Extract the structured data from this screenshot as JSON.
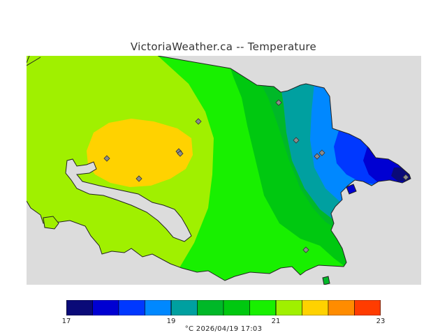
{
  "title": "VictoriaWeather.ca -- Temperature",
  "footer": "°C  2026/04/19 17:03",
  "colors": {
    "land_gray": "#dcdcdc",
    "coast": "#222222",
    "band_17": "#0a0a78",
    "band_17_5": "#0000d2",
    "band_18": "#0038ff",
    "band_18_5": "#0088ff",
    "band_19": "#00a0a0",
    "band_19_5": "#00b828",
    "band_20": "#00c810",
    "band_20_5": "#18f000",
    "band_21": "#a0f000",
    "band_21_5": "#ffd200",
    "band_22": "#ff8c00",
    "band_22_5": "#ff3c00",
    "band_23": "#ff0000"
  },
  "legend": {
    "unit": "°C",
    "min": 17,
    "max": 23,
    "tick_labels": [
      "17",
      "19",
      "21",
      "23"
    ],
    "bands": [
      {
        "from": 17.0,
        "to": 17.5,
        "color": "#0a0a78"
      },
      {
        "from": 17.5,
        "to": 18.0,
        "color": "#0000d2"
      },
      {
        "from": 18.0,
        "to": 18.5,
        "color": "#0038ff"
      },
      {
        "from": 18.5,
        "to": 19.0,
        "color": "#0088ff"
      },
      {
        "from": 19.0,
        "to": 19.5,
        "color": "#00a0a0"
      },
      {
        "from": 19.5,
        "to": 20.0,
        "color": "#00b828"
      },
      {
        "from": 20.0,
        "to": 20.5,
        "color": "#00c810"
      },
      {
        "from": 20.5,
        "to": 21.0,
        "color": "#18f000"
      },
      {
        "from": 21.0,
        "to": 21.5,
        "color": "#a0f000"
      },
      {
        "from": 21.5,
        "to": 22.0,
        "color": "#ffd200"
      },
      {
        "from": 22.0,
        "to": 22.5,
        "color": "#ff8c00"
      },
      {
        "from": 22.5,
        "to": 23.0,
        "color": "#ff3c00"
      }
    ]
  },
  "stations": [
    {
      "id": "station-1"
    },
    {
      "id": "station-2"
    },
    {
      "id": "station-3"
    },
    {
      "id": "station-4"
    },
    {
      "id": "station-5"
    },
    {
      "id": "station-6"
    },
    {
      "id": "station-7"
    },
    {
      "id": "station-8"
    },
    {
      "id": "station-9"
    },
    {
      "id": "station-10"
    },
    {
      "id": "station-11"
    }
  ]
}
